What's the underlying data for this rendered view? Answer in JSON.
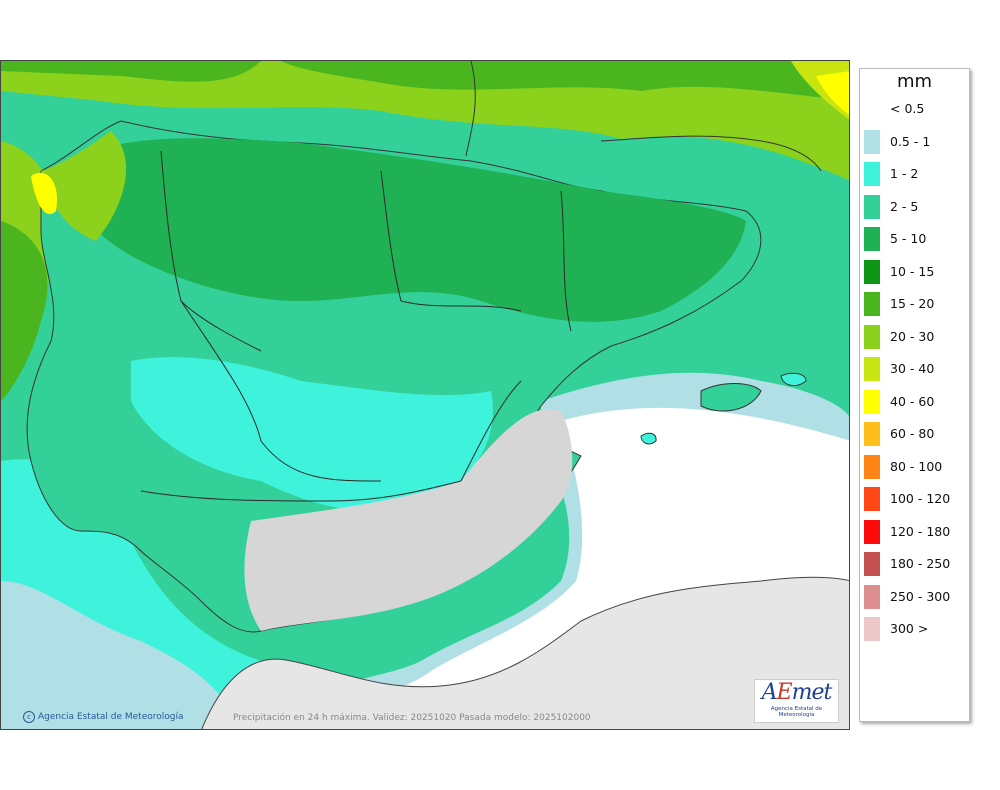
{
  "map": {
    "caption": "Precipitación en 24 h máxima. Validez: 20251020 Pasada modelo: 2025102000",
    "credit": "Agencia Estatal de Meteorología",
    "logo": {
      "text_a": "A",
      "text_e": "E",
      "text_met": "met",
      "subtitle": "Agencia Estatal de Meteorología"
    },
    "colors": {
      "sea_none": "#ffffff",
      "land_none": "#e6e6e6"
    }
  },
  "legend": {
    "unit": "mm",
    "items": [
      {
        "label": "< 0.5",
        "color": "#ffffff"
      },
      {
        "label": "0.5 - 1",
        "color": "#b0dfe5"
      },
      {
        "label": "1 - 2",
        "color": "#3ff2dc"
      },
      {
        "label": "2 - 5",
        "color": "#33d199"
      },
      {
        "label": "5 - 10",
        "color": "#1fb153"
      },
      {
        "label": "10 - 15",
        "color": "#0f9614"
      },
      {
        "label": "15 - 20",
        "color": "#4bb520"
      },
      {
        "label": "20 - 30",
        "color": "#8cd21c"
      },
      {
        "label": "30 - 40",
        "color": "#c8e510"
      },
      {
        "label": "40 - 60",
        "color": "#ffff00"
      },
      {
        "label": "60 - 80",
        "color": "#ffbe1a"
      },
      {
        "label": "80 - 100",
        "color": "#ff8514"
      },
      {
        "label": "100 - 120",
        "color": "#ff4614"
      },
      {
        "label": "120 - 180",
        "color": "#ff0a0a"
      },
      {
        "label": "180 - 250",
        "color": "#c44f4f"
      },
      {
        "label": "250 - 300",
        "color": "#da8e8e"
      },
      {
        "label": "300 >",
        "color": "#eec8c8"
      }
    ]
  }
}
